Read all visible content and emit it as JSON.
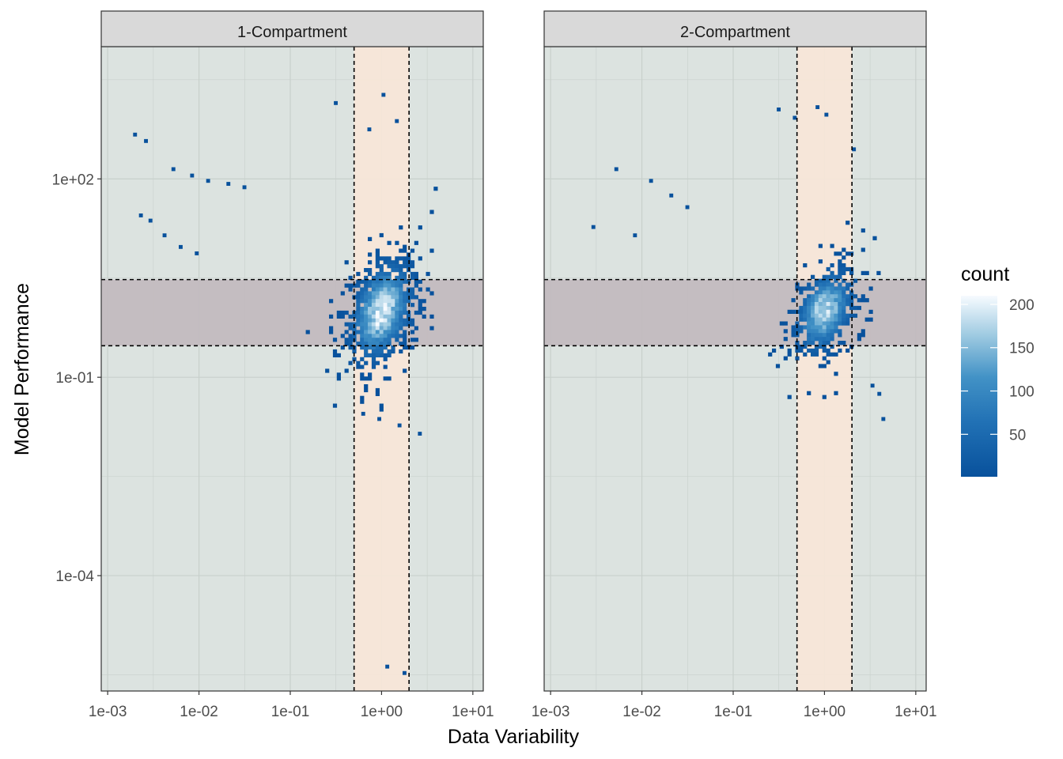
{
  "chart_data": {
    "type": "heatmap",
    "variant": "2d-binned log-log density (facetted)",
    "xlabel": "Data Variability",
    "ylabel": "Model Performance",
    "x_scale": "log10",
    "y_scale": "log10",
    "xlim": [
      0.00085,
      13
    ],
    "ylim": [
      1.8e-06,
      10000
    ],
    "x_ticks": [
      0.001,
      0.01,
      0.1,
      1,
      10
    ],
    "x_tick_labels": [
      "1e-03",
      "1e-02",
      "1e-01",
      "1e+00",
      "1e+01"
    ],
    "y_ticks": [
      0.0001,
      0.1,
      100
    ],
    "y_tick_labels": [
      "1e-04",
      "1e-01",
      "1e+02"
    ],
    "grid": true,
    "legend": {
      "title": "count",
      "position": "right",
      "breaks": [
        50,
        100,
        150,
        200
      ],
      "break_labels": [
        "50",
        "100",
        "150",
        "200"
      ],
      "range": [
        1,
        210
      ],
      "colors": {
        "low": "#08519c",
        "mid": "#6baed6",
        "high": "#f7fbff"
      }
    },
    "colors": {
      "panel_bg": "#dce3e0",
      "vertical_band": "#f7e6d8",
      "horizontal_band": "#c2bbbf",
      "strip_bg": "#d9d9d9",
      "grid": "#c8d0cc",
      "guide_line": "#000000"
    },
    "bands": {
      "x_range": [
        0.5,
        2
      ],
      "y_range": [
        0.3,
        3
      ]
    },
    "facets": [
      {
        "label": "1-Compartment",
        "core": {
          "center": [
            1.0,
            1.0
          ],
          "spread_x_decades": 0.22,
          "spread_y_decades": 0.45,
          "peak_count": 205
        },
        "x_extent": [
          0.1,
          5
        ],
        "y_extent": [
          0.02,
          100
        ],
        "outliers": [
          {
            "x": 0.0019,
            "y": 500
          },
          {
            "x": 0.0025,
            "y": 400
          },
          {
            "x": 0.0022,
            "y": 30
          },
          {
            "x": 0.0028,
            "y": 25
          },
          {
            "x": 0.005,
            "y": 150
          },
          {
            "x": 0.008,
            "y": 120
          },
          {
            "x": 0.012,
            "y": 100
          },
          {
            "x": 0.02,
            "y": 90
          },
          {
            "x": 0.03,
            "y": 80
          },
          {
            "x": 0.004,
            "y": 15
          },
          {
            "x": 0.006,
            "y": 10
          },
          {
            "x": 0.009,
            "y": 8
          },
          {
            "x": 0.3,
            "y": 1500
          },
          {
            "x": 0.7,
            "y": 600
          },
          {
            "x": 1.0,
            "y": 2000
          },
          {
            "x": 1.4,
            "y": 800
          },
          {
            "x": 0.6,
            "y": 0.03
          },
          {
            "x": 0.9,
            "y": 0.025
          },
          {
            "x": 1.5,
            "y": 0.02
          },
          {
            "x": 2.5,
            "y": 0.015
          },
          {
            "x": 1.1,
            "y": 4.5e-06
          },
          {
            "x": 1.7,
            "y": 3.6e-06
          }
        ]
      },
      {
        "label": "2-Compartment",
        "core": {
          "center": [
            1.0,
            1.0
          ],
          "spread_x_decades": 0.2,
          "spread_y_decades": 0.38,
          "peak_count": 190
        },
        "x_extent": [
          0.1,
          5
        ],
        "y_extent": [
          0.05,
          60
        ],
        "outliers": [
          {
            "x": 0.0028,
            "y": 20
          },
          {
            "x": 0.005,
            "y": 150
          },
          {
            "x": 0.012,
            "y": 100
          },
          {
            "x": 0.02,
            "y": 60
          },
          {
            "x": 0.03,
            "y": 40
          },
          {
            "x": 0.008,
            "y": 15
          },
          {
            "x": 0.3,
            "y": 1200
          },
          {
            "x": 0.45,
            "y": 900
          },
          {
            "x": 0.8,
            "y": 1300
          },
          {
            "x": 1.0,
            "y": 1000
          },
          {
            "x": 2.0,
            "y": 300
          },
          {
            "x": 3.8,
            "y": 0.06
          },
          {
            "x": 4.2,
            "y": 0.025
          },
          {
            "x": 3.2,
            "y": 0.08
          }
        ]
      }
    ]
  }
}
